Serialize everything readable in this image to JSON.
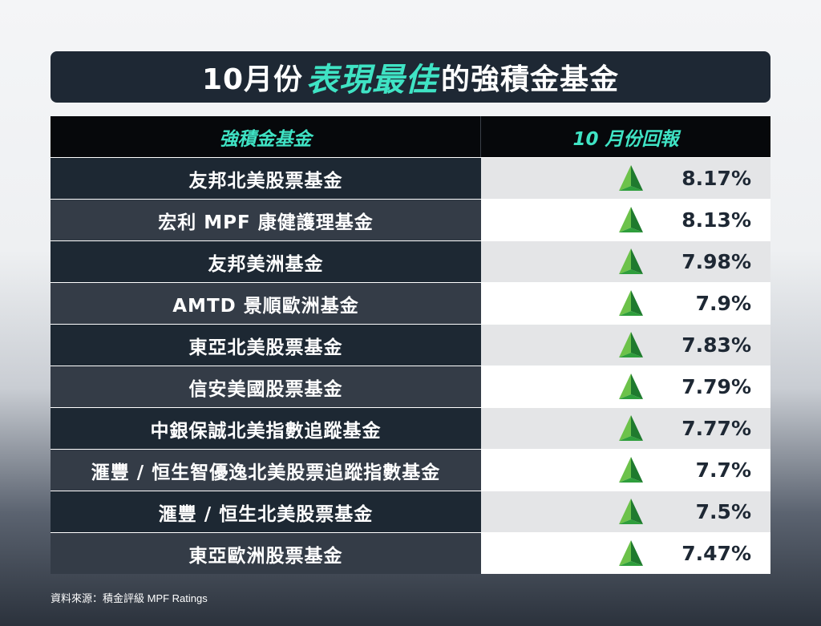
{
  "title": {
    "before": "10月份",
    "highlight": "表現最佳",
    "after": "的強積金基金"
  },
  "colors": {
    "accent": "#3fe3c4",
    "dark_bg": "#1e2834",
    "up_arrow": "#2e9e3c"
  },
  "chart_data": {
    "type": "table",
    "columns": [
      "強積金基金",
      "10 月份回報"
    ],
    "rows": [
      {
        "name": "友邦北美股票基金",
        "value": 8.17,
        "label": "8.17%",
        "trend": "up"
      },
      {
        "name": "宏利 MPF 康健護理基金",
        "value": 8.13,
        "label": "8.13%",
        "trend": "up"
      },
      {
        "name": "友邦美洲基金",
        "value": 7.98,
        "label": "7.98%",
        "trend": "up"
      },
      {
        "name": "AMTD 景順歐洲基金",
        "value": 7.9,
        "label": "7.9%",
        "trend": "up"
      },
      {
        "name": "東亞北美股票基金",
        "value": 7.83,
        "label": "7.83%",
        "trend": "up"
      },
      {
        "name": "信安美國股票基金",
        "value": 7.79,
        "label": "7.79%",
        "trend": "up"
      },
      {
        "name": "中銀保誠北美指數追蹤基金",
        "value": 7.77,
        "label": "7.77%",
        "trend": "up"
      },
      {
        "name": "滙豐 / 恒生智優逸北美股票追蹤指數基金",
        "value": 7.7,
        "label": "7.7%",
        "trend": "up"
      },
      {
        "name": "滙豐 / 恒生北美股票基金",
        "value": 7.5,
        "label": "7.5%",
        "trend": "up"
      },
      {
        "name": "東亞歐洲股票基金",
        "value": 7.47,
        "label": "7.47%",
        "trend": "up"
      }
    ]
  },
  "source": "資料來源：積金評級 MPF Ratings"
}
